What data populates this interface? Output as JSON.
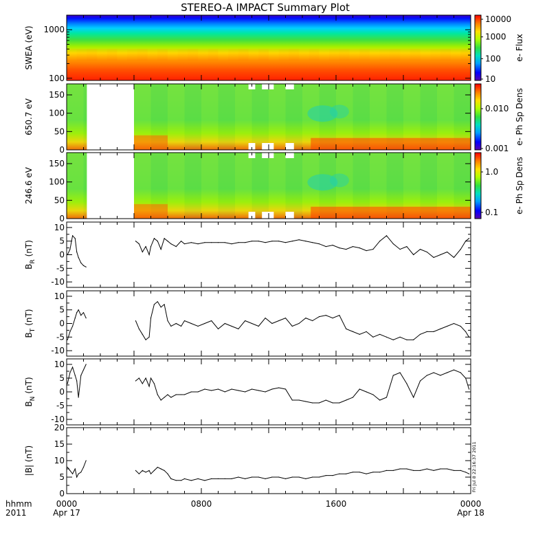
{
  "title": "STEREO-A IMPACT Summary Plot",
  "footer": {
    "left_top": "hhmm",
    "left_bottom": "2011",
    "time_ticks": [
      {
        "hour": 0,
        "top": "0000",
        "bottom": "Apr 17"
      },
      {
        "hour": 8,
        "top": "0800",
        "bottom": ""
      },
      {
        "hour": 16,
        "top": "1600",
        "bottom": ""
      },
      {
        "hour": 24,
        "top": "0000",
        "bottom": "Apr 18"
      }
    ],
    "stamp": "Fri Jul  8 22:16:37 2011"
  },
  "colors": {
    "colormap": [
      "#5a00b0",
      "#0000ff",
      "#00a0ff",
      "#00e0c0",
      "#30e040",
      "#b0ff00",
      "#ffe000",
      "#ff8000",
      "#ff0000"
    ],
    "line": "#000000",
    "gap": "#ffffff"
  },
  "chart_data": [
    {
      "type": "heatmap",
      "panel": "swea",
      "ylabel": "SWEA (eV)",
      "yscale": "log",
      "yticks": [
        "1000",
        "100"
      ],
      "ylim": [
        90,
        2000
      ],
      "colorbar": {
        "label": "e- Flux",
        "ticks": [
          "10000",
          "1000",
          "100",
          "10"
        ],
        "scale": "log",
        "range": [
          10,
          10000
        ]
      },
      "gaps": []
    },
    {
      "type": "heatmap",
      "panel": "pad1",
      "ylabel": "650.7 eV",
      "yticks": [
        "150",
        "100",
        "50",
        "0"
      ],
      "ylim": [
        0,
        180
      ],
      "colorbar": {
        "label": "e- Ph Sp Dens",
        "ticks": [
          "0.010",
          "0.001"
        ],
        "scale": "log",
        "range": [
          0.001,
          0.04
        ]
      },
      "gaps": [
        [
          1.2,
          4.0
        ]
      ]
    },
    {
      "type": "heatmap",
      "panel": "pad2",
      "ylabel": "246.6 eV",
      "yticks": [
        "150",
        "100",
        "50",
        "0"
      ],
      "ylim": [
        0,
        180
      ],
      "colorbar": {
        "label": "e- Ph Sp Dens",
        "ticks": [
          "1.0",
          "0.1"
        ],
        "scale": "log",
        "range": [
          0.07,
          3
        ]
      },
      "gaps": [
        [
          1.2,
          4.0
        ]
      ]
    },
    {
      "type": "line",
      "panel": "br",
      "ylabel": "B",
      "ylabel_sub": "R",
      "ylabel_unit": "(nT)",
      "ylim": [
        -12,
        12
      ],
      "yticks": [
        "10",
        "5",
        "0",
        "-5",
        "-10"
      ],
      "x": [
        0.05,
        0.2,
        0.35,
        0.5,
        0.6,
        0.7,
        0.85,
        1.0,
        1.15,
        4.1,
        4.3,
        4.5,
        4.7,
        4.9,
        5.0,
        5.2,
        5.4,
        5.6,
        5.8,
        6.0,
        6.2,
        6.5,
        6.8,
        7.0,
        7.4,
        7.8,
        8.2,
        8.6,
        9.0,
        9.4,
        9.8,
        10.2,
        10.6,
        11.0,
        11.4,
        11.8,
        12.2,
        12.6,
        13.0,
        13.4,
        13.8,
        14.2,
        14.6,
        15.0,
        15.4,
        15.8,
        16.2,
        16.6,
        17.0,
        17.4,
        17.8,
        18.2,
        18.6,
        19.0,
        19.4,
        19.8,
        20.2,
        20.6,
        21.0,
        21.4,
        21.8,
        22.2,
        22.6,
        23.0,
        23.4,
        23.7,
        23.9
      ],
      "y": [
        0.0,
        2.0,
        7.0,
        6.0,
        1.0,
        -1.0,
        -3.0,
        -4.0,
        -4.5,
        5.0,
        4.0,
        1.0,
        3.0,
        0.0,
        3.0,
        6.0,
        5.0,
        2.0,
        6.0,
        5.0,
        4.0,
        3.0,
        5.0,
        4.0,
        4.5,
        4.0,
        4.5,
        4.5,
        4.5,
        4.5,
        4.0,
        4.5,
        4.5,
        5.0,
        5.0,
        4.5,
        5.0,
        5.0,
        4.5,
        5.0,
        5.5,
        5.0,
        4.5,
        4.0,
        3.0,
        3.5,
        2.5,
        2.0,
        3.0,
        2.5,
        1.5,
        2.0,
        5.0,
        7.0,
        4.0,
        2.0,
        3.0,
        0.0,
        2.0,
        1.0,
        -1.0,
        0.0,
        1.0,
        -1.0,
        2.0,
        5.0,
        6.0
      ]
    },
    {
      "type": "line",
      "panel": "bt",
      "ylabel": "B",
      "ylabel_sub": "T",
      "ylabel_unit": "(nT)",
      "ylim": [
        -12,
        12
      ],
      "yticks": [
        "10",
        "5",
        "0",
        "-5",
        "-10"
      ],
      "x": [
        0.05,
        0.2,
        0.35,
        0.5,
        0.6,
        0.7,
        0.85,
        1.0,
        1.15,
        4.1,
        4.3,
        4.5,
        4.7,
        4.9,
        5.0,
        5.2,
        5.4,
        5.6,
        5.8,
        6.0,
        6.2,
        6.5,
        6.8,
        7.0,
        7.4,
        7.8,
        8.2,
        8.6,
        9.0,
        9.4,
        9.8,
        10.2,
        10.6,
        11.0,
        11.4,
        11.8,
        12.2,
        12.6,
        13.0,
        13.4,
        13.8,
        14.2,
        14.6,
        15.0,
        15.4,
        15.8,
        16.2,
        16.6,
        17.0,
        17.4,
        17.8,
        18.2,
        18.6,
        19.0,
        19.4,
        19.8,
        20.2,
        20.6,
        21.0,
        21.4,
        21.8,
        22.2,
        22.6,
        23.0,
        23.4,
        23.7,
        23.9
      ],
      "y": [
        -6.0,
        -3.0,
        -1.0,
        2.0,
        4.0,
        5.0,
        3.0,
        4.0,
        2.0,
        1.0,
        -2.0,
        -4.0,
        -6.0,
        -5.0,
        2.0,
        7.0,
        8.0,
        6.0,
        7.0,
        1.0,
        -1.0,
        0.0,
        -1.0,
        1.0,
        0.0,
        -1.0,
        0.0,
        1.0,
        -2.0,
        0.0,
        -1.0,
        -2.0,
        1.0,
        0.0,
        -1.0,
        2.0,
        0.0,
        1.0,
        2.0,
        -1.0,
        0.0,
        2.0,
        1.0,
        2.5,
        3.0,
        2.0,
        3.0,
        -2.0,
        -3.0,
        -4.0,
        -3.0,
        -5.0,
        -4.0,
        -5.0,
        -6.0,
        -5.0,
        -6.0,
        -6.0,
        -4.0,
        -3.0,
        -3.0,
        -2.0,
        -1.0,
        0.0,
        -1.0,
        -3.0,
        -5.0
      ]
    },
    {
      "type": "line",
      "panel": "bn",
      "ylabel": "B",
      "ylabel_sub": "N",
      "ylabel_unit": "(nT)",
      "ylim": [
        -12,
        12
      ],
      "yticks": [
        "10",
        "5",
        "0",
        "-5",
        "-10"
      ],
      "x": [
        0.05,
        0.2,
        0.35,
        0.5,
        0.6,
        0.7,
        0.85,
        1.0,
        1.15,
        4.1,
        4.3,
        4.5,
        4.7,
        4.9,
        5.0,
        5.2,
        5.4,
        5.6,
        5.8,
        6.0,
        6.2,
        6.5,
        6.8,
        7.0,
        7.4,
        7.8,
        8.2,
        8.6,
        9.0,
        9.4,
        9.8,
        10.2,
        10.6,
        11.0,
        11.4,
        11.8,
        12.2,
        12.6,
        13.0,
        13.4,
        13.8,
        14.2,
        14.6,
        15.0,
        15.4,
        15.8,
        16.2,
        16.6,
        17.0,
        17.4,
        17.8,
        18.2,
        18.6,
        19.0,
        19.4,
        19.8,
        20.2,
        20.6,
        21.0,
        21.4,
        21.8,
        22.2,
        22.6,
        23.0,
        23.4,
        23.7,
        23.9
      ],
      "y": [
        3.0,
        7.0,
        9.0,
        6.0,
        4.0,
        -2.0,
        6.0,
        8.0,
        10.0,
        4.0,
        5.0,
        3.0,
        5.0,
        2.0,
        5.0,
        3.0,
        -1.0,
        -3.0,
        -2.0,
        -1.0,
        -2.0,
        -1.0,
        -1.0,
        -1.0,
        0.0,
        0.0,
        1.0,
        0.5,
        1.0,
        0.0,
        1.0,
        0.5,
        0.0,
        1.0,
        0.5,
        0.0,
        1.0,
        1.5,
        1.0,
        -3.0,
        -3.0,
        -3.5,
        -4.0,
        -4.0,
        -3.0,
        -4.0,
        -4.0,
        -3.0,
        -2.0,
        1.0,
        0.0,
        -1.0,
        -3.0,
        -2.0,
        6.0,
        7.0,
        3.0,
        -2.0,
        4.0,
        6.0,
        7.0,
        6.0,
        7.0,
        8.0,
        7.0,
        5.0,
        1.0
      ]
    },
    {
      "type": "line",
      "panel": "bmag",
      "ylabel": "|B| (nT)",
      "ylim": [
        0,
        20
      ],
      "yticks": [
        "20",
        "15",
        "10",
        "5",
        "0"
      ],
      "x": [
        0.05,
        0.2,
        0.35,
        0.5,
        0.6,
        0.7,
        0.85,
        1.0,
        1.15,
        4.1,
        4.3,
        4.5,
        4.7,
        4.9,
        5.0,
        5.2,
        5.4,
        5.6,
        5.8,
        6.0,
        6.2,
        6.5,
        6.8,
        7.0,
        7.4,
        7.8,
        8.2,
        8.6,
        9.0,
        9.4,
        9.8,
        10.2,
        10.6,
        11.0,
        11.4,
        11.8,
        12.2,
        12.6,
        13.0,
        13.4,
        13.8,
        14.2,
        14.6,
        15.0,
        15.4,
        15.8,
        16.2,
        16.6,
        17.0,
        17.4,
        17.8,
        18.2,
        18.6,
        19.0,
        19.4,
        19.8,
        20.2,
        20.6,
        21.0,
        21.4,
        21.8,
        22.2,
        22.6,
        23.0,
        23.4,
        23.7,
        23.9
      ],
      "y": [
        8.0,
        7.0,
        6.0,
        7.5,
        5.0,
        6.0,
        6.5,
        8.0,
        10.0,
        7.0,
        6.0,
        7.0,
        6.5,
        7.0,
        6.0,
        7.0,
        8.0,
        7.5,
        7.0,
        6.0,
        4.5,
        4.0,
        4.0,
        4.5,
        4.0,
        4.5,
        4.0,
        4.5,
        4.5,
        4.5,
        4.5,
        5.0,
        4.5,
        5.0,
        5.0,
        4.5,
        5.0,
        5.0,
        4.5,
        5.0,
        5.0,
        4.5,
        5.0,
        5.0,
        5.5,
        5.5,
        6.0,
        6.0,
        6.5,
        6.5,
        6.0,
        6.5,
        6.5,
        7.0,
        7.0,
        7.5,
        7.5,
        7.0,
        7.0,
        7.5,
        7.0,
        7.5,
        7.5,
        7.0,
        7.0,
        6.5,
        6.0
      ]
    }
  ]
}
